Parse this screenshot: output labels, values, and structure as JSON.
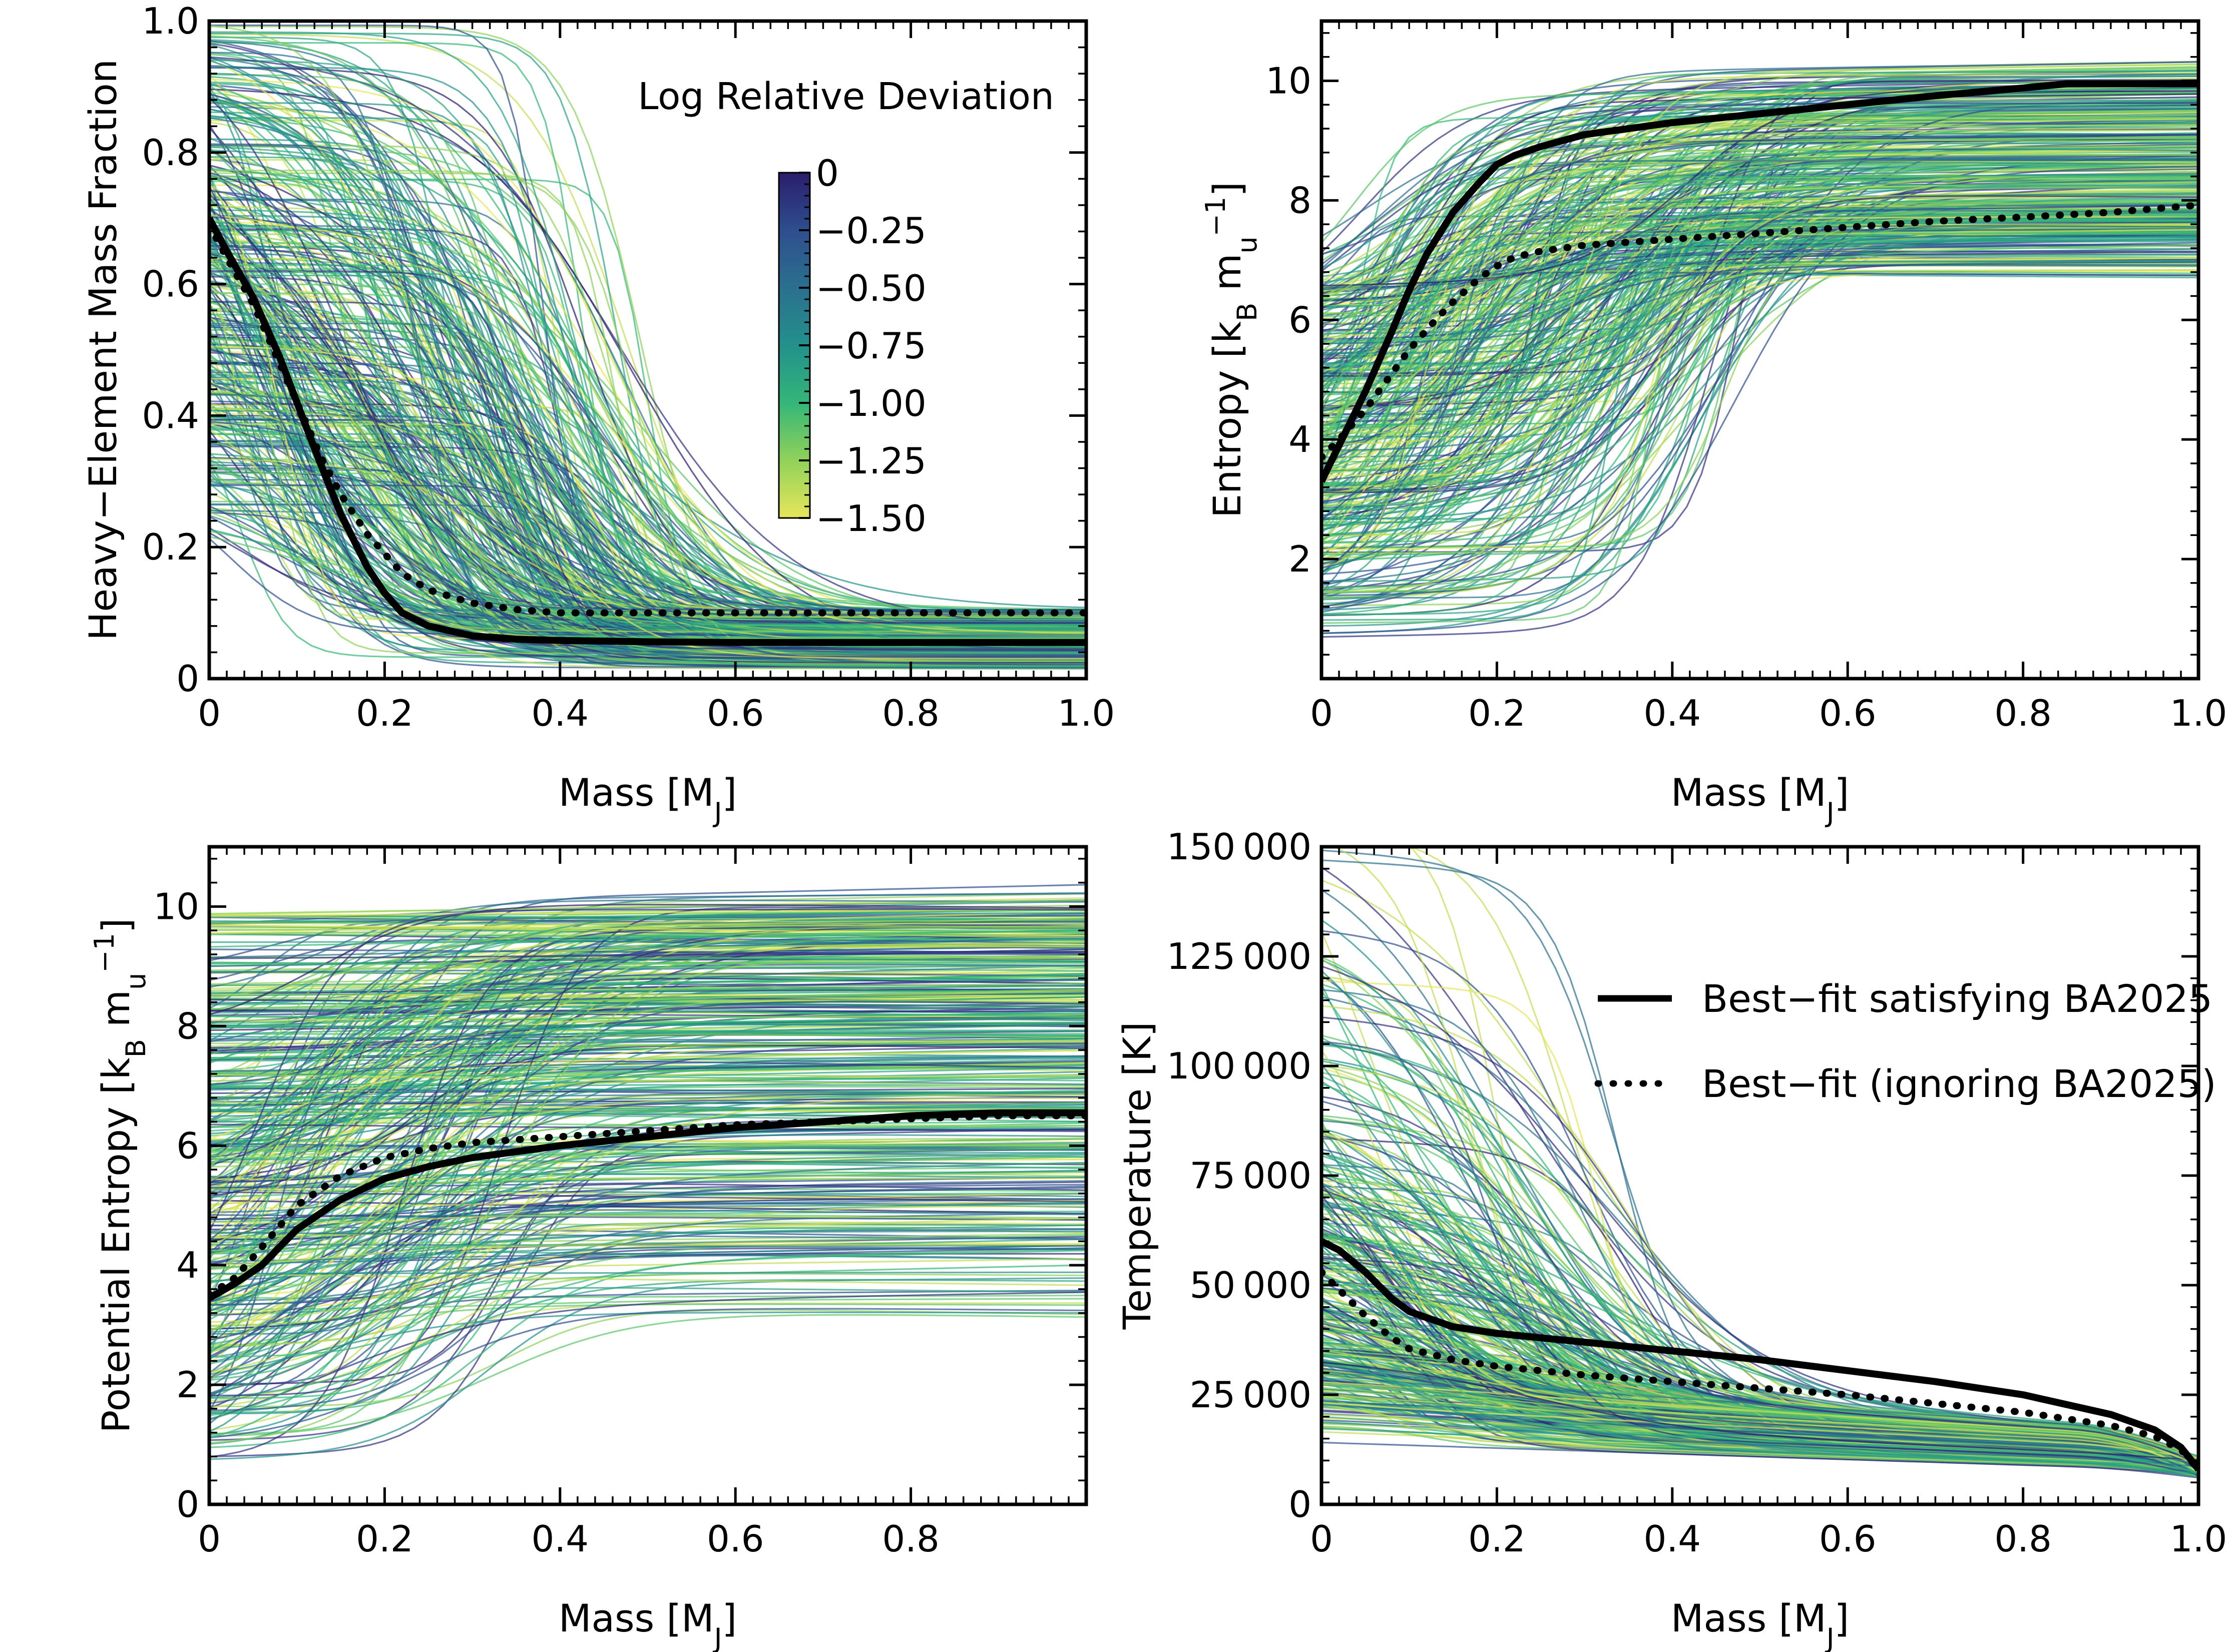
{
  "colorbar": {
    "title": "Log Relative Deviation",
    "ticks": [
      "0",
      "−0.25",
      "−0.50",
      "−0.75",
      "−1.00",
      "−1.25",
      "−1.50"
    ],
    "range": [
      -1.5,
      0
    ]
  },
  "legend": {
    "solid": "Best−fit satisfying BA2025",
    "dotted": "Best−fit (ignoring BA2025)"
  },
  "chart_data": [
    {
      "type": "line",
      "panel": "top-left",
      "xlabel": "Mass [MJ]",
      "ylabel": "Heavy−Element Mass Fraction",
      "xlim": [
        0,
        1.0
      ],
      "ylim": [
        0,
        1.0
      ],
      "x_ticks": [
        "0",
        "0.2",
        "0.4",
        "0.6",
        "0.8",
        "1.0"
      ],
      "y_ticks": [
        "0",
        "0.2",
        "0.4",
        "0.6",
        "0.8",
        "1.0"
      ],
      "series": [
        {
          "name": "Best−fit satisfying BA2025",
          "style": "solid",
          "x": [
            0,
            0.02,
            0.05,
            0.08,
            0.1,
            0.12,
            0.15,
            0.18,
            0.2,
            0.22,
            0.25,
            0.3,
            0.35,
            0.4,
            0.5,
            0.6,
            0.8,
            1.0
          ],
          "y": [
            0.7,
            0.65,
            0.58,
            0.49,
            0.42,
            0.35,
            0.25,
            0.17,
            0.13,
            0.1,
            0.08,
            0.065,
            0.06,
            0.058,
            0.056,
            0.055,
            0.055,
            0.055
          ]
        },
        {
          "name": "Best−fit (ignoring BA2025)",
          "style": "dotted",
          "x": [
            0,
            0.02,
            0.05,
            0.08,
            0.1,
            0.13,
            0.15,
            0.18,
            0.2,
            0.22,
            0.25,
            0.3,
            0.35,
            0.4,
            0.5,
            0.6,
            0.8,
            1.0
          ],
          "y": [
            0.69,
            0.64,
            0.57,
            0.48,
            0.42,
            0.33,
            0.28,
            0.22,
            0.19,
            0.16,
            0.135,
            0.115,
            0.105,
            0.1,
            0.1,
            0.1,
            0.1,
            0.1
          ]
        }
      ]
    },
    {
      "type": "line",
      "panel": "top-right",
      "xlabel": "Mass [MJ]",
      "ylabel": "Entropy [kB mu−1]",
      "xlim": [
        0,
        1.0
      ],
      "ylim": [
        0,
        11
      ],
      "x_ticks": [
        "0",
        "0.2",
        "0.4",
        "0.6",
        "0.8",
        "1.0"
      ],
      "y_ticks": [
        "2",
        "4",
        "6",
        "8",
        "10"
      ],
      "series": [
        {
          "name": "Best−fit satisfying BA2025",
          "style": "solid",
          "x": [
            0,
            0.02,
            0.05,
            0.08,
            0.1,
            0.12,
            0.15,
            0.18,
            0.2,
            0.22,
            0.25,
            0.3,
            0.35,
            0.4,
            0.5,
            0.6,
            0.7,
            0.8,
            0.85,
            0.9,
            1.0
          ],
          "y": [
            3.3,
            3.9,
            4.8,
            5.8,
            6.5,
            7.1,
            7.8,
            8.3,
            8.6,
            8.75,
            8.9,
            9.1,
            9.2,
            9.3,
            9.45,
            9.6,
            9.75,
            9.88,
            9.95,
            9.95,
            9.95
          ]
        },
        {
          "name": "Best−fit (ignoring BA2025)",
          "style": "dotted",
          "x": [
            0,
            0.02,
            0.05,
            0.08,
            0.1,
            0.13,
            0.15,
            0.18,
            0.2,
            0.22,
            0.25,
            0.3,
            0.35,
            0.4,
            0.5,
            0.6,
            0.7,
            0.8,
            0.9,
            1.0
          ],
          "y": [
            3.7,
            4.0,
            4.5,
            5.1,
            5.5,
            6.0,
            6.3,
            6.7,
            6.9,
            7.05,
            7.15,
            7.25,
            7.3,
            7.35,
            7.45,
            7.55,
            7.65,
            7.72,
            7.8,
            7.92
          ]
        }
      ]
    },
    {
      "type": "line",
      "panel": "bottom-left",
      "xlabel": "Mass [MJ]",
      "ylabel": "Potential Entropy [kB mu−1]",
      "xlim": [
        0,
        1.0
      ],
      "ylim": [
        0,
        11
      ],
      "x_ticks": [
        "0",
        "0.2",
        "0.4",
        "0.6",
        "0.8"
      ],
      "y_ticks": [
        "0",
        "2",
        "4",
        "6",
        "8",
        "10"
      ],
      "series": [
        {
          "name": "Best−fit satisfying BA2025",
          "style": "solid",
          "x": [
            0,
            0.03,
            0.06,
            0.1,
            0.15,
            0.2,
            0.25,
            0.3,
            0.4,
            0.5,
            0.6,
            0.7,
            0.8,
            0.9,
            1.0
          ],
          "y": [
            3.45,
            3.7,
            4.0,
            4.6,
            5.1,
            5.45,
            5.65,
            5.8,
            6.0,
            6.15,
            6.3,
            6.4,
            6.5,
            6.55,
            6.55
          ]
        },
        {
          "name": "Best−fit (ignoring BA2025)",
          "style": "dotted",
          "x": [
            0,
            0.03,
            0.06,
            0.1,
            0.15,
            0.2,
            0.25,
            0.3,
            0.4,
            0.5,
            0.6,
            0.7,
            0.8,
            0.9,
            1.0
          ],
          "y": [
            3.5,
            3.8,
            4.3,
            5.0,
            5.5,
            5.8,
            5.95,
            6.05,
            6.15,
            6.25,
            6.35,
            6.4,
            6.45,
            6.5,
            6.5
          ]
        }
      ]
    },
    {
      "type": "line",
      "panel": "bottom-right",
      "xlabel": "Mass [MJ]",
      "ylabel": "Temperature [K]",
      "xlim": [
        0,
        1.0
      ],
      "ylim": [
        0,
        150000
      ],
      "x_ticks": [
        "0",
        "0.2",
        "0.4",
        "0.6",
        "0.8",
        "1.0"
      ],
      "y_ticks": [
        "0",
        "25 000",
        "50 000",
        "75 000",
        "100 000",
        "125 000",
        "150 000"
      ],
      "series": [
        {
          "name": "Best−fit satisfying BA2025",
          "style": "solid",
          "x": [
            0,
            0.02,
            0.05,
            0.08,
            0.1,
            0.15,
            0.2,
            0.3,
            0.4,
            0.5,
            0.6,
            0.7,
            0.8,
            0.9,
            0.95,
            0.98,
            1.0
          ],
          "y": [
            60000,
            58000,
            53000,
            47000,
            44000,
            40500,
            39000,
            37000,
            35000,
            33000,
            30500,
            28000,
            25000,
            20500,
            17000,
            13000,
            8000
          ]
        },
        {
          "name": "Best−fit (ignoring BA2025)",
          "style": "dotted",
          "x": [
            0,
            0.02,
            0.05,
            0.08,
            0.1,
            0.15,
            0.2,
            0.3,
            0.4,
            0.5,
            0.6,
            0.7,
            0.8,
            0.9,
            0.95,
            0.98,
            1.0
          ],
          "y": [
            53000,
            49000,
            43000,
            38000,
            35500,
            33000,
            31500,
            29500,
            28000,
            26500,
            25000,
            23000,
            21000,
            18000,
            15500,
            12500,
            8000
          ]
        }
      ]
    }
  ]
}
